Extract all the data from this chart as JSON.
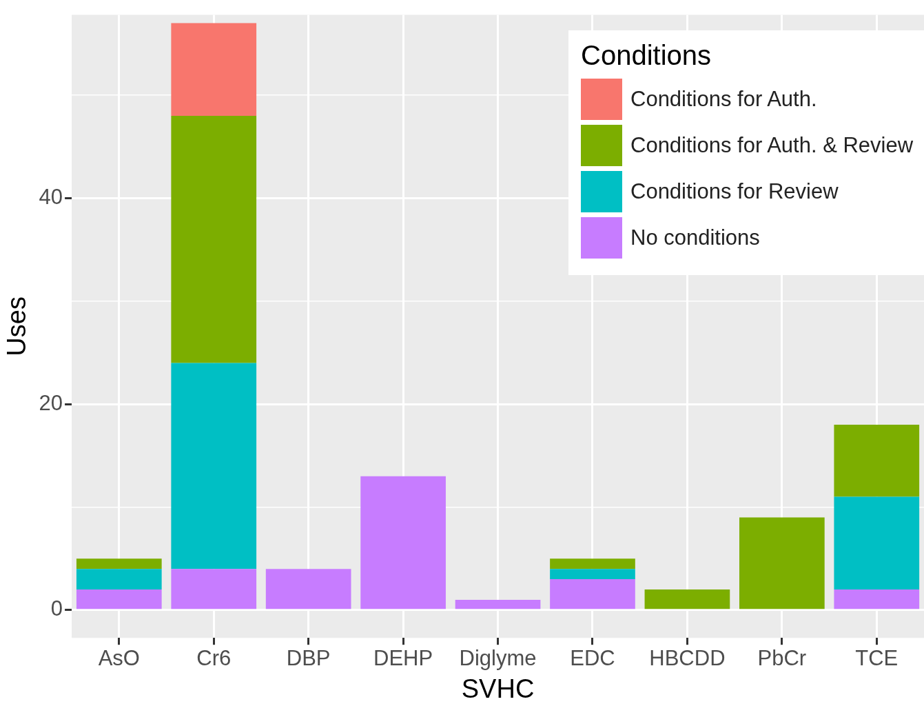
{
  "chart_data": {
    "type": "bar",
    "stacked": true,
    "xlabel": "SVHC",
    "ylabel": "Uses",
    "legend_title": "Conditions",
    "legend": "top right",
    "grid": true,
    "categories": [
      "AsO",
      "Cr6",
      "DBP",
      "DEHP",
      "Diglyme",
      "EDC",
      "HBCDD",
      "PbCr",
      "TCE"
    ],
    "ylim": [
      -2.7,
      57.8
    ],
    "yticks": [
      0,
      {
        "value": 10,
        "label": null
      },
      20,
      {
        "value": 30,
        "label": null
      },
      40,
      {
        "value": 50,
        "label": null
      }
    ],
    "series": [
      {
        "name": "No conditions",
        "color": "#c77cff",
        "values": [
          2,
          4,
          4,
          13,
          1,
          3,
          0,
          0,
          2
        ]
      },
      {
        "name": "Conditions for Review",
        "color": "#00bfc4",
        "values": [
          2,
          20,
          0,
          0,
          0,
          1,
          0,
          0,
          9
        ]
      },
      {
        "name": "Conditions for Auth. & Review",
        "color": "#7cae00",
        "values": [
          1,
          24,
          0,
          0,
          0,
          1,
          2,
          9,
          7
        ]
      },
      {
        "name": "Conditions for Auth.",
        "color": "#f8766d",
        "values": [
          0,
          9,
          0,
          0,
          0,
          0,
          0,
          0,
          0
        ]
      }
    ]
  }
}
